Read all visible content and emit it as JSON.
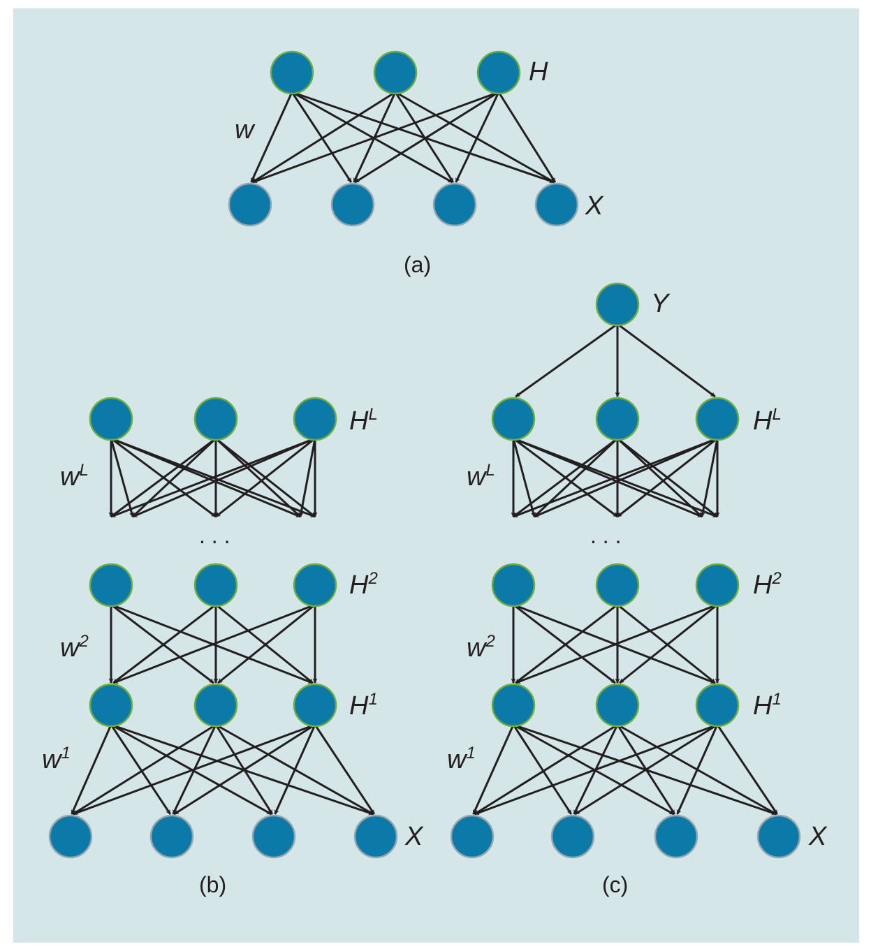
{
  "colors": {
    "panel_bg": "#d4e6e8",
    "node_fill": "#0b7aa9",
    "hidden_node_stroke": "#6fae3e",
    "visible_node_stroke": "#9aa6ad",
    "edge": "#231f20"
  },
  "panels": {
    "a": {
      "caption": "(a)",
      "hidden_label": "H",
      "visible_label": "X",
      "weight_label": "w"
    },
    "b": {
      "caption": "(b)",
      "top_label": "H",
      "top_sup": "L",
      "wL_base": "w",
      "wL_sup": "L",
      "ellipsis": ". . .",
      "h2_base": "H",
      "h2_sup": "2",
      "w2_base": "w",
      "w2_sup": "2",
      "h1_base": "H",
      "h1_sup": "1",
      "w1_base": "w",
      "w1_sup": "1",
      "visible_label": "X"
    },
    "c": {
      "caption": "(c)",
      "y_label": "Y",
      "top_label": "H",
      "top_sup": "L",
      "wL_base": "w",
      "wL_sup": "L",
      "ellipsis": ". . .",
      "h2_base": "H",
      "h2_sup": "2",
      "w2_base": "w",
      "w2_sup": "2",
      "h1_base": "H",
      "h1_sup": "1",
      "w1_base": "w",
      "w1_sup": "1",
      "visible_label": "X"
    }
  }
}
